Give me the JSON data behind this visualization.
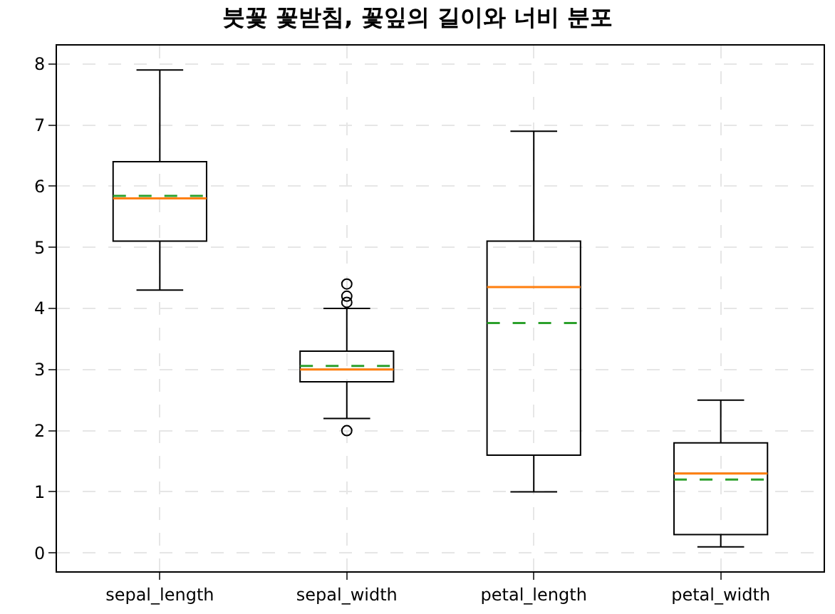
{
  "chart_data": {
    "type": "box",
    "title": "붓꽃 꽃받침, 꽃잎의 길이와 너비 분포",
    "categories": [
      "sepal_length",
      "sepal_width",
      "petal_length",
      "petal_width"
    ],
    "boxes": [
      {
        "low": 4.3,
        "q1": 5.1,
        "median": 5.8,
        "q3": 6.4,
        "high": 7.9,
        "mean": 5.84
      },
      {
        "low": 2.2,
        "q1": 2.8,
        "median": 3.0,
        "q3": 3.3,
        "high": 4.0,
        "mean": 3.06,
        "outliers": [
          4.4,
          4.2,
          4.1,
          2.0
        ]
      },
      {
        "low": 1.0,
        "q1": 1.6,
        "median": 4.35,
        "q3": 5.1,
        "high": 6.9,
        "mean": 3.76
      },
      {
        "low": 0.1,
        "q1": 0.3,
        "median": 1.3,
        "q3": 1.8,
        "high": 2.5,
        "mean": 1.2
      }
    ],
    "color": "#000000",
    "ylim": [
      -0.3,
      8.3
    ],
    "yticks": [
      0,
      1,
      2,
      3,
      4,
      5,
      6,
      7,
      8
    ],
    "grid": true
  }
}
